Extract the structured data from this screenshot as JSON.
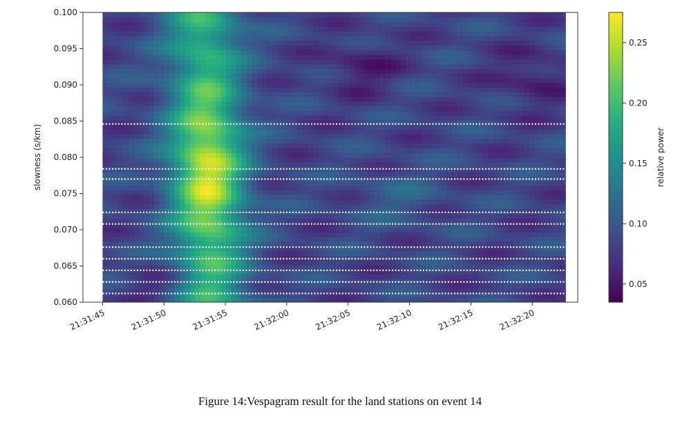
{
  "chart_data": {
    "type": "heatmap",
    "title": "",
    "xlabel": "",
    "ylabel": "slowness (s/km)",
    "colorbar_label": "relative power",
    "colormap": "viridis",
    "x_ticks": [
      "21:31:45",
      "21:31:50",
      "21:31:55",
      "21:32:00",
      "21:32:05",
      "21:32:10",
      "21:32:15",
      "21:32:20"
    ],
    "x_tick_values_s": [
      0,
      5,
      10,
      15,
      20,
      25,
      30,
      35
    ],
    "xlim_s": [
      -1.6,
      38.7
    ],
    "data_x_range_s": [
      0,
      37.7
    ],
    "y_ticks": [
      "0.060",
      "0.065",
      "0.070",
      "0.075",
      "0.080",
      "0.085",
      "0.090",
      "0.095",
      "0.100"
    ],
    "y_tick_values": [
      0.06,
      0.065,
      0.07,
      0.075,
      0.08,
      0.085,
      0.09,
      0.095,
      0.1
    ],
    "ylim": [
      0.06,
      0.1
    ],
    "colorbar_ticks": [
      "0.05",
      "0.10",
      "0.15",
      "0.20",
      "0.25"
    ],
    "colorbar_tick_values": [
      0.05,
      0.1,
      0.15,
      0.2,
      0.25
    ],
    "colorbar_range": [
      0.035,
      0.275
    ],
    "peak_power": {
      "time": "21:31:55",
      "slowness": 0.078,
      "value": 0.27
    },
    "grid": false,
    "white_row_gaps_at_slowness": [
      0.0612,
      0.0628,
      0.0644,
      0.066,
      0.0676,
      0.0708,
      0.0724,
      0.077,
      0.0784,
      0.0846
    ]
  },
  "caption": "Figure 14:Vespagram result for the land stations on event 14"
}
